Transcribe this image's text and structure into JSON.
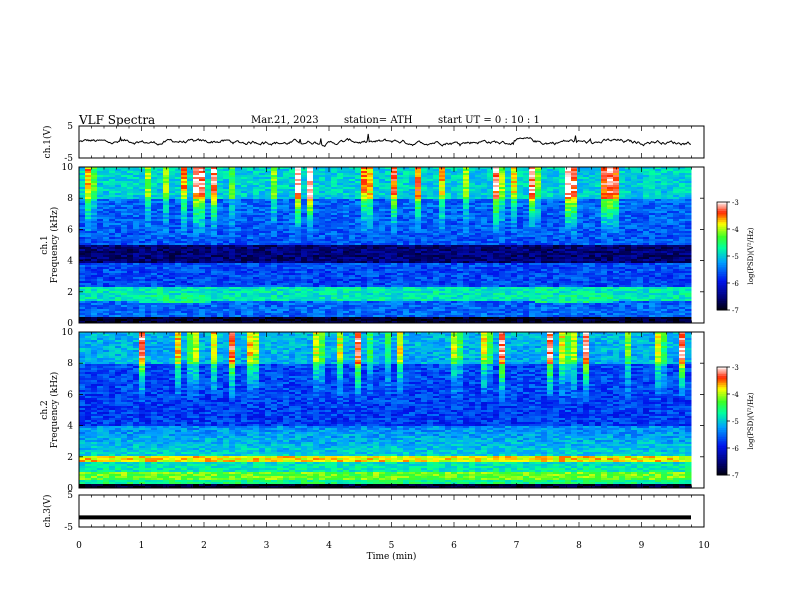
{
  "header": {
    "title": "VLF  Spectra",
    "date": "Mar.21, 2023",
    "station": "station= ATH",
    "start": "start  UT  =    0  : 10 : 1"
  },
  "colors": {
    "trace": "#000000",
    "frame": "#000000",
    "colormap": [
      "#000000",
      "#0000ff",
      "#00ccff",
      "#00ff66",
      "#ffff00",
      "#ff0000",
      "#ffffff"
    ]
  },
  "chart_data": [
    {
      "type": "line",
      "name": "ch1-waveform",
      "ylabel": "ch.1(V)",
      "ylim": [
        -5,
        5
      ],
      "yticks": [
        "5",
        "-5"
      ],
      "xlim": [
        0,
        10
      ],
      "approx_level_V": 0.0,
      "approx_amplitude_V": 0.6
    },
    {
      "type": "heatmap",
      "name": "ch1-spectrogram",
      "ylabel": "ch.1\nFrequency  (kHz)",
      "ylim": [
        0,
        10
      ],
      "yticks": [
        "0",
        "2",
        "4",
        "6",
        "8",
        "10"
      ],
      "xlim": [
        0,
        10
      ],
      "colorbar": {
        "label": "log(PSD)(V²/Hz)",
        "range": [
          -7,
          -3
        ],
        "ticks": [
          "-3",
          "-4",
          "-5",
          "-6",
          "-7"
        ]
      },
      "features": {
        "dark_band_kHz": [
          3.8,
          5.0
        ],
        "bright_band_kHz": [
          1.4,
          2.3
        ],
        "time_varying_segments_min": [
          0.95,
          2.1,
          7.3,
          8.5
        ]
      }
    },
    {
      "type": "heatmap",
      "name": "ch2-spectrogram",
      "ylabel": "ch.2\nFrequency  (kHz)",
      "ylim": [
        0,
        10
      ],
      "yticks": [
        "0",
        "2",
        "4",
        "6",
        "8",
        "10"
      ],
      "xlim": [
        0,
        10
      ],
      "colorbar": {
        "label": "log(PSD)(V²/Hz)",
        "range": [
          -7,
          -3
        ],
        "ticks": [
          "-3",
          "-4",
          "-5",
          "-6",
          "-7"
        ]
      },
      "features": {
        "strong_band_kHz": [
          1.7,
          2.1
        ],
        "bright_band_kHz": [
          0.5,
          3.5
        ]
      }
    },
    {
      "type": "line",
      "name": "ch3-waveform",
      "ylabel": "ch.3(V)",
      "ylim": [
        -5,
        5
      ],
      "yticks": [
        "5",
        "-5"
      ],
      "xlim": [
        0,
        10
      ],
      "approx_level_V": -2.0,
      "xlabel": "Time  (min)",
      "xticks": [
        "0",
        "1",
        "2",
        "3",
        "4",
        "5",
        "6",
        "7",
        "8",
        "9",
        "10"
      ]
    }
  ]
}
